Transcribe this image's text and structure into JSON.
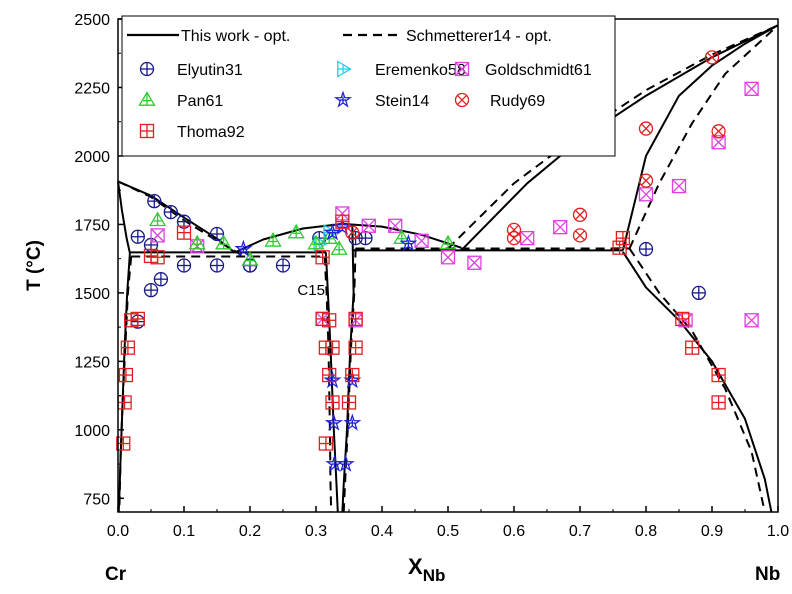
{
  "chart_data": {
    "type": "scatter",
    "title": "",
    "xlabel": "X",
    "xlabel_sub": "Nb",
    "ylabel": "T (°C)",
    "xlim": [
      0.0,
      1.0
    ],
    "ylim": [
      700,
      2500
    ],
    "x_ticks": [
      0.0,
      0.1,
      0.2,
      0.3,
      0.4,
      0.5,
      0.6,
      0.7,
      0.8,
      0.9,
      1.0
    ],
    "x_tick_labels": [
      "0.0",
      "0.1",
      "0.2",
      "0.3",
      "0.4",
      "0.5",
      "0.6",
      "0.7",
      "0.8",
      "0.9",
      "1.0"
    ],
    "y_ticks": [
      750,
      1000,
      1250,
      1500,
      1750,
      2000,
      2250,
      2500
    ],
    "y_tick_labels": [
      "750",
      "1000",
      "1250",
      "1500",
      "1750",
      "2000",
      "2250",
      "2500"
    ],
    "corner_labels": {
      "left": "Cr",
      "right": "Nb"
    },
    "annotations": [
      {
        "text": "C15",
        "x": 0.29,
        "y": 1500
      }
    ],
    "legend": {
      "placement": "top-center",
      "line_entries": [
        {
          "name": "This work - opt.",
          "style": "solid"
        },
        {
          "name": "Schmetterer14 - opt.",
          "style": "dashed"
        }
      ]
    },
    "lines": [
      {
        "name": "This work - opt.",
        "style": "solid",
        "segments": [
          [
            [
              0.0,
              1907
            ],
            [
              0.05,
              1855
            ],
            [
              0.1,
              1775
            ],
            [
              0.15,
              1698
            ],
            [
              0.177,
              1648
            ]
          ],
          [
            [
              0.0,
              1907
            ],
            [
              0.006,
              1800
            ],
            [
              0.013,
              1700
            ],
            [
              0.018,
              1645
            ]
          ],
          [
            [
              0.018,
              1645
            ],
            [
              0.014,
              1500
            ],
            [
              0.01,
              1300
            ],
            [
              0.007,
              1100
            ],
            [
              0.004,
              900
            ],
            [
              0.002,
              750
            ],
            [
              0.001,
              700
            ]
          ],
          [
            [
              0.018,
              1648
            ],
            [
              0.315,
              1648
            ]
          ],
          [
            [
              0.177,
              1648
            ],
            [
              0.22,
              1695
            ],
            [
              0.28,
              1735
            ],
            [
              0.34,
              1752
            ],
            [
              0.4,
              1742
            ],
            [
              0.46,
              1712
            ],
            [
              0.52,
              1665
            ]
          ],
          [
            [
              0.315,
              1648
            ],
            [
              0.318,
              1500
            ],
            [
              0.322,
              1300
            ],
            [
              0.327,
              1000
            ],
            [
              0.331,
              800
            ],
            [
              0.333,
              700
            ]
          ],
          [
            [
              0.355,
              1752
            ],
            [
              0.357,
              1500
            ],
            [
              0.352,
              1300
            ],
            [
              0.347,
              1000
            ],
            [
              0.342,
              800
            ],
            [
              0.34,
              700
            ]
          ],
          [
            [
              0.355,
              1655
            ],
            [
              0.765,
              1655
            ]
          ],
          [
            [
              0.52,
              1655
            ],
            [
              0.62,
              1900
            ],
            [
              0.7,
              2060
            ],
            [
              0.8,
              2220
            ],
            [
              0.9,
              2360
            ],
            [
              1.0,
              2477
            ]
          ],
          [
            [
              0.765,
              1655
            ],
            [
              0.8,
              2000
            ],
            [
              0.85,
              2220
            ],
            [
              0.9,
              2330
            ],
            [
              0.95,
              2410
            ],
            [
              1.0,
              2477
            ]
          ],
          [
            [
              0.765,
              1650
            ],
            [
              0.8,
              1520
            ],
            [
              0.85,
              1400
            ],
            [
              0.9,
              1250
            ],
            [
              0.95,
              1040
            ],
            [
              0.98,
              820
            ],
            [
              0.99,
              700
            ]
          ]
        ]
      },
      {
        "name": "Schmetterer14 - opt.",
        "style": "dashed",
        "segments": [
          [
            [
              0.0,
              1907
            ],
            [
              0.05,
              1850
            ],
            [
              0.1,
              1765
            ],
            [
              0.15,
              1690
            ],
            [
              0.19,
              1635
            ]
          ],
          [
            [
              0.02,
              1633
            ],
            [
              0.313,
              1633
            ]
          ],
          [
            [
              0.02,
              1633
            ],
            [
              0.015,
              1500
            ],
            [
              0.011,
              1300
            ],
            [
              0.007,
              1100
            ],
            [
              0.004,
              900
            ],
            [
              0.002,
              700
            ]
          ],
          [
            [
              0.313,
              1633
            ],
            [
              0.316,
              1500
            ],
            [
              0.319,
              1300
            ],
            [
              0.321,
              1000
            ],
            [
              0.322,
              800
            ],
            [
              0.323,
              700
            ]
          ],
          [
            [
              0.36,
              1662
            ],
            [
              0.358,
              1500
            ],
            [
              0.353,
              1300
            ],
            [
              0.348,
              1000
            ],
            [
              0.344,
              800
            ],
            [
              0.342,
              700
            ]
          ],
          [
            [
              0.36,
              1662
            ],
            [
              0.775,
              1662
            ]
          ],
          [
            [
              0.5,
              1662
            ],
            [
              0.6,
              1900
            ],
            [
              0.7,
              2080
            ],
            [
              0.8,
              2240
            ],
            [
              0.9,
              2370
            ],
            [
              1.0,
              2477
            ]
          ],
          [
            [
              0.775,
              1662
            ],
            [
              0.82,
              1900
            ],
            [
              0.87,
              2120
            ],
            [
              0.92,
              2300
            ],
            [
              1.0,
              2477
            ]
          ],
          [
            [
              0.775,
              1662
            ],
            [
              0.82,
              1500
            ],
            [
              0.87,
              1360
            ],
            [
              0.92,
              1150
            ],
            [
              0.96,
              920
            ],
            [
              0.98,
              700
            ]
          ]
        ]
      }
    ],
    "series": [
      {
        "name": "Elyutin31",
        "color": "#1a1a8c",
        "marker": "circle-plus",
        "points": [
          [
            0.03,
            1395
          ],
          [
            0.03,
            1705
          ],
          [
            0.05,
            1510
          ],
          [
            0.05,
            1675
          ],
          [
            0.055,
            1835
          ],
          [
            0.065,
            1550
          ],
          [
            0.08,
            1795
          ],
          [
            0.1,
            1760
          ],
          [
            0.1,
            1600
          ],
          [
            0.15,
            1600
          ],
          [
            0.15,
            1715
          ],
          [
            0.2,
            1600
          ],
          [
            0.2,
            1600
          ],
          [
            0.25,
            1600
          ],
          [
            0.305,
            1700
          ],
          [
            0.36,
            1700
          ],
          [
            0.375,
            1700
          ],
          [
            0.8,
            1660
          ],
          [
            0.88,
            1500
          ]
        ]
      },
      {
        "name": "Eremenko58",
        "color": "#1fd0e8",
        "marker": "triangle-right",
        "points": [
          [
            0.305,
            1680
          ],
          [
            0.32,
            1720
          ]
        ]
      },
      {
        "name": "Goldschmidt61",
        "color": "#e040e0",
        "marker": "square-cross",
        "points": [
          [
            0.06,
            1710
          ],
          [
            0.12,
            1670
          ],
          [
            0.34,
            1790
          ],
          [
            0.38,
            1745
          ],
          [
            0.42,
            1745
          ],
          [
            0.46,
            1690
          ],
          [
            0.5,
            1630
          ],
          [
            0.54,
            1610
          ],
          [
            0.62,
            1700
          ],
          [
            0.67,
            1740
          ],
          [
            0.8,
            1860
          ],
          [
            0.85,
            1890
          ],
          [
            0.91,
            2050
          ],
          [
            0.96,
            2245
          ],
          [
            0.96,
            1400
          ],
          [
            0.86,
            1400
          ],
          [
            0.36,
            1400
          ],
          [
            0.31,
            1405
          ]
        ]
      },
      {
        "name": "Pan61",
        "color": "#2ecc2e",
        "marker": "triangle",
        "points": [
          [
            0.06,
            1765
          ],
          [
            0.12,
            1680
          ],
          [
            0.16,
            1680
          ],
          [
            0.2,
            1620
          ],
          [
            0.235,
            1690
          ],
          [
            0.27,
            1720
          ],
          [
            0.3,
            1680
          ],
          [
            0.32,
            1700
          ],
          [
            0.335,
            1660
          ],
          [
            0.43,
            1700
          ],
          [
            0.5,
            1680
          ]
        ]
      },
      {
        "name": "Stein14",
        "color": "#2020d8",
        "marker": "star",
        "points": [
          [
            0.325,
            1720
          ],
          [
            0.34,
            1740
          ],
          [
            0.19,
            1660
          ],
          [
            0.44,
            1680
          ],
          [
            0.325,
            1180
          ],
          [
            0.355,
            1180
          ],
          [
            0.327,
            1025
          ],
          [
            0.355,
            1025
          ],
          [
            0.328,
            875
          ],
          [
            0.345,
            875
          ]
        ]
      },
      {
        "name": "Rudy69",
        "color": "#e02020",
        "marker": "circle-x",
        "points": [
          [
            0.6,
            1700
          ],
          [
            0.6,
            1730
          ],
          [
            0.7,
            1710
          ],
          [
            0.7,
            1785
          ],
          [
            0.8,
            1910
          ],
          [
            0.8,
            2100
          ],
          [
            0.9,
            2360
          ],
          [
            0.91,
            2090
          ],
          [
            0.355,
            1720
          ]
        ]
      },
      {
        "name": "Thoma92",
        "color": "#e02020",
        "marker": "square-plus",
        "points": [
          [
            0.008,
            950
          ],
          [
            0.01,
            1100
          ],
          [
            0.012,
            1200
          ],
          [
            0.015,
            1300
          ],
          [
            0.02,
            1400
          ],
          [
            0.03,
            1405
          ],
          [
            0.05,
            1635
          ],
          [
            0.06,
            1630
          ],
          [
            0.31,
            1630
          ],
          [
            0.31,
            1405
          ],
          [
            0.32,
            1400
          ],
          [
            0.325,
            1300
          ],
          [
            0.315,
            1300
          ],
          [
            0.32,
            1200
          ],
          [
            0.325,
            1100
          ],
          [
            0.315,
            950
          ],
          [
            0.36,
            1300
          ],
          [
            0.36,
            1405
          ],
          [
            0.355,
            1200
          ],
          [
            0.35,
            1100
          ],
          [
            0.76,
            1665
          ],
          [
            0.765,
            1700
          ],
          [
            0.855,
            1405
          ],
          [
            0.87,
            1300
          ],
          [
            0.91,
            1200
          ],
          [
            0.91,
            1100
          ],
          [
            0.1,
            1720
          ],
          [
            0.34,
            1760
          ]
        ]
      }
    ],
    "legend_scatter_order": [
      "Elyutin31",
      "Eremenko58",
      "Goldschmidt61",
      "Pan61",
      "Stein14",
      "Rudy69",
      "Thoma92"
    ]
  }
}
